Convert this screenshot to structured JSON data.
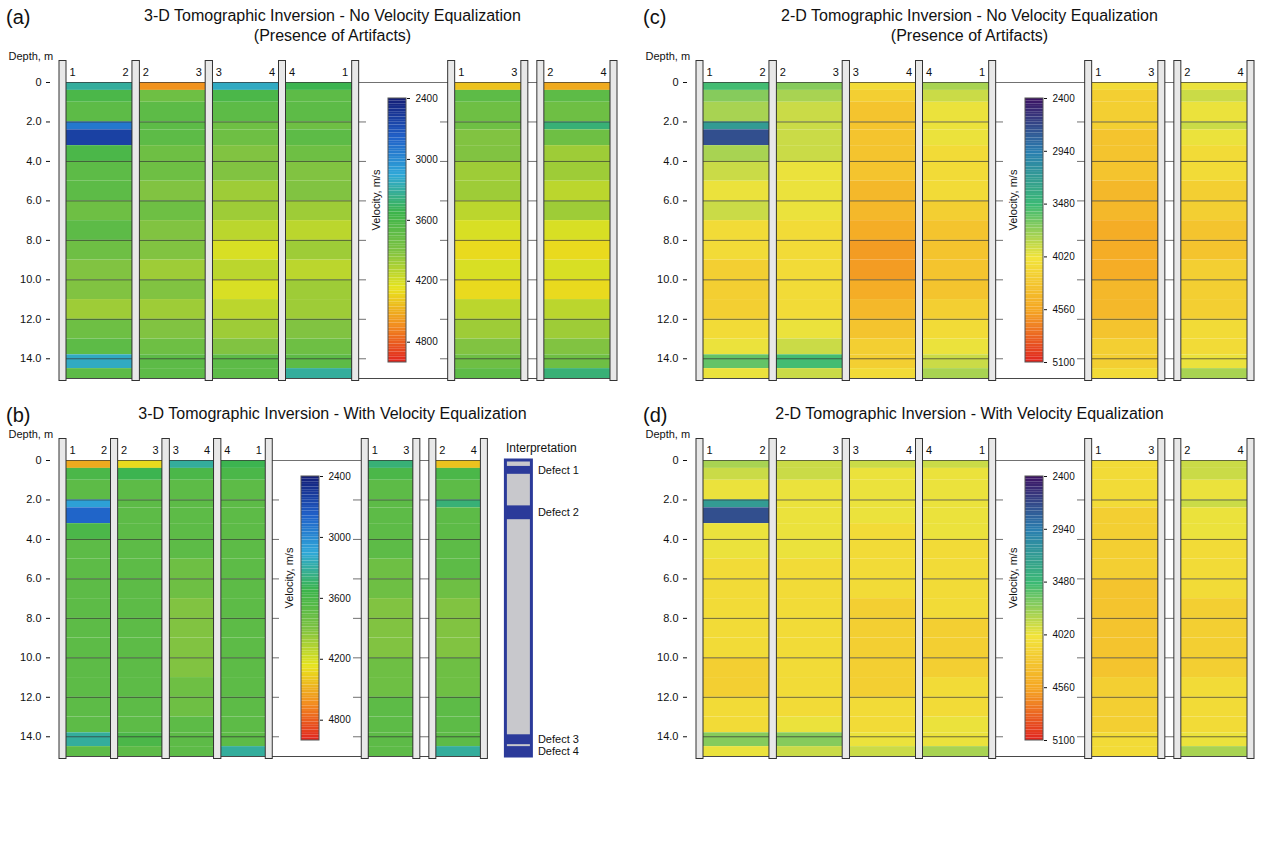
{
  "chart_data": [
    {
      "type": "heatmap",
      "panel": "(a)",
      "title": "3-D Tomographic Inversion - No Velocity Equalization",
      "subtitle": "(Presence of Artifacts)",
      "y_label": "Depth, m",
      "ylim": [
        0,
        15
      ],
      "yticks": [
        0,
        {
          "value": 2,
          "label": "2.0"
        },
        {
          "value": 4,
          "label": "4.0"
        },
        {
          "value": 6,
          "label": "6.0"
        },
        {
          "value": 8,
          "label": "8.0"
        },
        {
          "value": 10,
          "label": "10.0"
        },
        {
          "value": 12,
          "label": "12.0"
        },
        {
          "value": 14,
          "label": "14.0"
        }
      ],
      "grid": true,
      "depth_edges": [
        0,
        0.4,
        1,
        2,
        2.4,
        3.2,
        4,
        5,
        6,
        7,
        8,
        9,
        10,
        11,
        12,
        13,
        13.8,
        14.5,
        15
      ],
      "profiles": [
        {
          "boreholes": [
            "1",
            "2"
          ],
          "values": [
            3300,
            3600,
            3700,
            2900,
            2600,
            3600,
            3700,
            3700,
            3800,
            3700,
            3800,
            3900,
            3900,
            4000,
            3800,
            3700,
            3200,
            3700
          ]
        },
        {
          "boreholes": [
            "2",
            "3"
          ],
          "values": [
            4600,
            3800,
            3700,
            3700,
            3700,
            3800,
            3800,
            3900,
            3800,
            3900,
            3900,
            4000,
            3900,
            4000,
            3900,
            3800,
            3700,
            3700
          ]
        },
        {
          "boreholes": [
            "3",
            "4"
          ],
          "values": [
            3200,
            3600,
            3700,
            3800,
            3800,
            3900,
            3900,
            4000,
            4000,
            4100,
            4200,
            4100,
            4200,
            4100,
            4000,
            3900,
            3700,
            3700
          ]
        },
        {
          "boreholes": [
            "4",
            "1"
          ],
          "values": [
            3500,
            3700,
            3700,
            3800,
            3700,
            3800,
            3900,
            3900,
            4000,
            4100,
            4000,
            4100,
            4000,
            4000,
            3900,
            3800,
            3700,
            3300
          ]
        },
        {
          "boreholes": [
            "1",
            "3"
          ],
          "values": [
            4400,
            3700,
            3800,
            3800,
            3900,
            3900,
            4000,
            4000,
            4100,
            4200,
            4300,
            4200,
            4300,
            4100,
            4000,
            3900,
            3800,
            3700
          ]
        },
        {
          "boreholes": [
            "2",
            "4"
          ],
          "values": [
            4500,
            3700,
            3800,
            3400,
            3800,
            4000,
            4000,
            4100,
            4000,
            4200,
            4300,
            4200,
            4300,
            4100,
            4000,
            3900,
            3800,
            3400
          ]
        }
      ],
      "colorbar": {
        "label": "Velocity, m/s",
        "range": [
          2400,
          5000
        ],
        "ticks": [
          2400,
          3000,
          3600,
          4200,
          4800
        ],
        "colors": [
          "#141e78",
          "#1f5fc8",
          "#2fa8d8",
          "#3cb44b",
          "#7dc242",
          "#e8e41e",
          "#f28c1e",
          "#e0201e"
        ]
      }
    },
    {
      "type": "heatmap",
      "panel": "(c)",
      "title": "2-D Tomographic Inversion - No Velocity Equalization",
      "subtitle": "(Presence of Artifacts)",
      "y_label": "Depth, m",
      "ylim": [
        0,
        15
      ],
      "yticks": [
        0,
        {
          "value": 2,
          "label": "2.0"
        },
        {
          "value": 4,
          "label": "4.0"
        },
        {
          "value": 6,
          "label": "6.0"
        },
        {
          "value": 8,
          "label": "8.0"
        },
        {
          "value": 10,
          "label": "10.0"
        },
        {
          "value": 12,
          "label": "12.0"
        },
        {
          "value": 14,
          "label": "14.0"
        }
      ],
      "grid": true,
      "depth_edges": [
        0,
        0.4,
        1,
        2,
        2.4,
        3.2,
        4,
        5,
        6,
        7,
        8,
        9,
        10,
        11,
        12,
        13,
        13.8,
        14.5,
        15
      ],
      "profiles": [
        {
          "boreholes": [
            "1",
            "2"
          ],
          "values": [
            3500,
            3700,
            3800,
            3200,
            2700,
            3800,
            3900,
            4000,
            3900,
            4100,
            4100,
            4200,
            4200,
            4200,
            4100,
            4000,
            3600,
            4000
          ]
        },
        {
          "boreholes": [
            "2",
            "3"
          ],
          "values": [
            3700,
            3800,
            3900,
            3900,
            3900,
            3900,
            4000,
            4000,
            4000,
            4100,
            4100,
            4100,
            4100,
            4100,
            4000,
            3900,
            3500,
            3900
          ]
        },
        {
          "boreholes": [
            "3",
            "4"
          ],
          "values": [
            4100,
            4200,
            4300,
            4300,
            4300,
            4300,
            4300,
            4400,
            4400,
            4500,
            4600,
            4600,
            4500,
            4400,
            4300,
            4200,
            4200,
            4100
          ]
        },
        {
          "boreholes": [
            "4",
            "1"
          ],
          "values": [
            3800,
            3900,
            4000,
            4000,
            4000,
            4100,
            4100,
            4100,
            4200,
            4300,
            4300,
            4300,
            4300,
            4200,
            4100,
            4000,
            3900,
            3800
          ]
        },
        {
          "boreholes": [
            "1",
            "3"
          ],
          "values": [
            4100,
            4200,
            4200,
            4200,
            4300,
            4300,
            4300,
            4400,
            4400,
            4500,
            4500,
            4500,
            4400,
            4400,
            4300,
            4200,
            4200,
            4100
          ]
        },
        {
          "boreholes": [
            "2",
            "4"
          ],
          "values": [
            4000,
            3900,
            4000,
            3900,
            4000,
            4100,
            4100,
            4200,
            4200,
            4300,
            4300,
            4200,
            4200,
            4200,
            4100,
            4100,
            4000,
            3800
          ]
        }
      ],
      "colorbar": {
        "label": "Velocity, m/s",
        "range": [
          2400,
          5100
        ],
        "ticks": [
          2400,
          2940,
          3480,
          4020,
          4560,
          5100
        ],
        "colors": [
          "#3c1464",
          "#2a7fb0",
          "#3cba74",
          "#f2e43a",
          "#f5a623",
          "#e0201e"
        ]
      }
    },
    {
      "type": "heatmap",
      "panel": "(b)",
      "title": "3-D Tomographic Inversion - With Velocity Equalization",
      "y_label": "Depth, m",
      "ylim": [
        0,
        15
      ],
      "yticks": [
        0,
        {
          "value": 2,
          "label": "2.0"
        },
        {
          "value": 4,
          "label": "4.0"
        },
        {
          "value": 6,
          "label": "6.0"
        },
        {
          "value": 8,
          "label": "8.0"
        },
        {
          "value": 10,
          "label": "10.0"
        },
        {
          "value": 12,
          "label": "12.0"
        },
        {
          "value": 14,
          "label": "14.0"
        }
      ],
      "grid": true,
      "depth_edges": [
        0,
        0.4,
        1,
        2,
        2.4,
        3.2,
        4,
        5,
        6,
        7,
        8,
        9,
        10,
        11,
        12,
        13,
        13.8,
        14.5,
        15
      ],
      "profiles": [
        {
          "boreholes": [
            "1",
            "2"
          ],
          "values": [
            4500,
            3600,
            3700,
            3100,
            2800,
            3600,
            3700,
            3700,
            3700,
            3700,
            3700,
            3700,
            3700,
            3700,
            3700,
            3700,
            3300,
            3700
          ]
        },
        {
          "boreholes": [
            "2",
            "3"
          ],
          "values": [
            4300,
            3500,
            3700,
            3700,
            3700,
            3700,
            3700,
            3700,
            3700,
            3700,
            3700,
            3700,
            3700,
            3700,
            3700,
            3700,
            3600,
            3700
          ]
        },
        {
          "boreholes": [
            "3",
            "4"
          ],
          "values": [
            3300,
            3600,
            3700,
            3700,
            3700,
            3700,
            3700,
            3800,
            3800,
            3900,
            3900,
            3900,
            3900,
            3800,
            3800,
            3700,
            3700,
            3700
          ]
        },
        {
          "boreholes": [
            "4",
            "1"
          ],
          "values": [
            3500,
            3600,
            3700,
            3700,
            3700,
            3700,
            3700,
            3700,
            3700,
            3700,
            3700,
            3700,
            3700,
            3700,
            3700,
            3700,
            3700,
            3300
          ]
        },
        {
          "boreholes": [
            "1",
            "3"
          ],
          "values": [
            3400,
            3600,
            3700,
            3700,
            3700,
            3700,
            3700,
            3800,
            3800,
            3900,
            3900,
            3900,
            3800,
            3800,
            3700,
            3700,
            3700,
            3700
          ]
        },
        {
          "boreholes": [
            "2",
            "4"
          ],
          "values": [
            4400,
            3600,
            3700,
            3400,
            3700,
            3700,
            3700,
            3700,
            3800,
            3900,
            3900,
            3900,
            3800,
            3800,
            3700,
            3700,
            3700,
            3300
          ]
        }
      ],
      "colorbar": {
        "label": "Velocity, m/s",
        "range": [
          2400,
          5000
        ],
        "ticks": [
          2400,
          3000,
          3600,
          4200,
          4800
        ],
        "colors": [
          "#141e78",
          "#1f5fc8",
          "#2fa8d8",
          "#3cb44b",
          "#7dc242",
          "#e8e41e",
          "#f28c1e",
          "#e0201e"
        ]
      },
      "interpretation": {
        "title": "Interpretation",
        "defects": [
          {
            "label": "Defect 1",
            "depth": [
              0.3,
              0.7
            ]
          },
          {
            "label": "Defect 2",
            "depth": [
              2.3,
              3.0
            ]
          },
          {
            "label": "Defect 3",
            "depth": [
              13.9,
              14.4
            ]
          },
          {
            "label": "Defect 4",
            "depth": [
              14.5,
              15.0
            ]
          }
        ]
      }
    },
    {
      "type": "heatmap",
      "panel": "(d)",
      "title": "2-D Tomographic Inversion - With Velocity Equalization",
      "y_label": "Depth, m",
      "ylim": [
        0,
        15
      ],
      "yticks": [
        0,
        {
          "value": 2,
          "label": "2.0"
        },
        {
          "value": 4,
          "label": "4.0"
        },
        {
          "value": 6,
          "label": "6.0"
        },
        {
          "value": 8,
          "label": "8.0"
        },
        {
          "value": 10,
          "label": "10.0"
        },
        {
          "value": 12,
          "label": "12.0"
        },
        {
          "value": 14,
          "label": "14.0"
        }
      ],
      "grid": true,
      "depth_edges": [
        0,
        0.4,
        1,
        2,
        2.4,
        3.2,
        4,
        5,
        6,
        7,
        8,
        9,
        10,
        11,
        12,
        13,
        13.8,
        14.5,
        15
      ],
      "profiles": [
        {
          "boreholes": [
            "1",
            "2"
          ],
          "values": [
            3800,
            3900,
            4000,
            3200,
            2700,
            4000,
            4000,
            4100,
            4100,
            4100,
            4100,
            4100,
            4200,
            4200,
            4100,
            4100,
            3700,
            4000
          ]
        },
        {
          "boreholes": [
            "2",
            "3"
          ],
          "values": [
            3900,
            3900,
            4000,
            4000,
            4000,
            4000,
            4000,
            4100,
            4100,
            4100,
            4100,
            4100,
            4100,
            4100,
            4100,
            4000,
            3700,
            3900
          ]
        },
        {
          "boreholes": [
            "3",
            "4"
          ],
          "values": [
            3900,
            4000,
            4000,
            4000,
            4000,
            4100,
            4100,
            4100,
            4100,
            4200,
            4200,
            4200,
            4200,
            4200,
            4100,
            4100,
            4000,
            3900
          ]
        },
        {
          "boreholes": [
            "4",
            "1"
          ],
          "values": [
            3900,
            4000,
            4000,
            4000,
            4000,
            4000,
            4100,
            4100,
            4100,
            4100,
            4200,
            4200,
            4200,
            4100,
            4100,
            4000,
            4000,
            3800
          ]
        },
        {
          "boreholes": [
            "1",
            "3"
          ],
          "values": [
            4100,
            4100,
            4100,
            4100,
            4200,
            4200,
            4200,
            4200,
            4300,
            4300,
            4300,
            4300,
            4300,
            4200,
            4200,
            4200,
            4100,
            4100
          ]
        },
        {
          "boreholes": [
            "2",
            "4"
          ],
          "values": [
            3900,
            3900,
            4000,
            3900,
            4000,
            4000,
            4100,
            4100,
            4100,
            4200,
            4200,
            4200,
            4200,
            4100,
            4100,
            4100,
            4000,
            3800
          ]
        }
      ],
      "colorbar": {
        "label": "Velocity, m/s",
        "range": [
          2400,
          5100
        ],
        "ticks": [
          2400,
          2940,
          3480,
          4020,
          4560,
          5100
        ],
        "colors": [
          "#3c1464",
          "#2a7fb0",
          "#3cba74",
          "#f2e43a",
          "#f5a623",
          "#e0201e"
        ]
      }
    }
  ]
}
